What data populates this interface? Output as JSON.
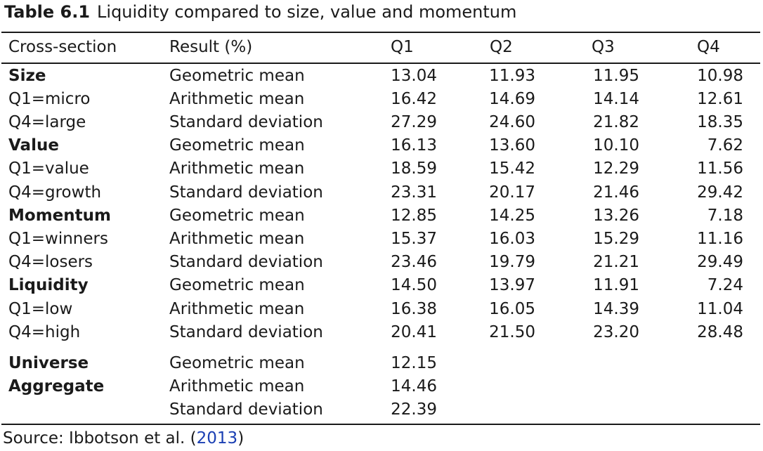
{
  "caption": {
    "label": "Table 6.1",
    "title": "Liquidity compared to size, value and momentum"
  },
  "header": {
    "cross_section": "Cross-section",
    "result": "Result (%)",
    "q1": "Q1",
    "q2": "Q2",
    "q3": "Q3",
    "q4": "Q4"
  },
  "rows": [
    {
      "section": "Size",
      "result": "Geometric mean",
      "q1": "13.04",
      "q2": "11.93",
      "q3": "11.95",
      "q4": "10.98"
    },
    {
      "section": "Q1=micro",
      "result": "Arithmetic mean",
      "q1": "16.42",
      "q2": "14.69",
      "q3": "14.14",
      "q4": "12.61"
    },
    {
      "section": "Q4=large",
      "result": "Standard deviation",
      "q1": "27.29",
      "q2": "24.60",
      "q3": "21.82",
      "q4": "18.35"
    },
    {
      "section": "Value",
      "result": "Geometric mean",
      "q1": "16.13",
      "q2": "13.60",
      "q3": "10.10",
      "q4": "7.62"
    },
    {
      "section": "Q1=value",
      "result": "Arithmetic mean",
      "q1": "18.59",
      "q2": "15.42",
      "q3": "12.29",
      "q4": "11.56"
    },
    {
      "section": "Q4=growth",
      "result": "Standard deviation",
      "q1": "23.31",
      "q2": "20.17",
      "q3": "21.46",
      "q4": "29.42"
    },
    {
      "section": "Momentum",
      "result": "Geometric mean",
      "q1": "12.85",
      "q2": "14.25",
      "q3": "13.26",
      "q4": "7.18"
    },
    {
      "section": "Q1=winners",
      "result": "Arithmetic mean",
      "q1": "15.37",
      "q2": "16.03",
      "q3": "15.29",
      "q4": "11.16"
    },
    {
      "section": "Q4=losers",
      "result": "Standard deviation",
      "q1": "23.46",
      "q2": "19.79",
      "q3": "21.21",
      "q4": "29.49"
    },
    {
      "section": "Liquidity",
      "result": "Geometric mean",
      "q1": "14.50",
      "q2": "13.97",
      "q3": "11.91",
      "q4": "7.24"
    },
    {
      "section": "Q1=low",
      "result": "Arithmetic mean",
      "q1": "16.38",
      "q2": "16.05",
      "q3": "14.39",
      "q4": "11.04"
    },
    {
      "section": "Q4=high",
      "result": "Standard deviation",
      "q1": "20.41",
      "q2": "21.50",
      "q3": "23.20",
      "q4": "28.48"
    },
    {
      "section": "Universe",
      "result": "Geometric mean",
      "q1": "12.15",
      "q2": "",
      "q3": "",
      "q4": ""
    },
    {
      "section": "Aggregate",
      "result": "Arithmetic mean",
      "q1": "14.46",
      "q2": "",
      "q3": "",
      "q4": ""
    },
    {
      "section": "",
      "result": "Standard deviation",
      "q1": "22.39",
      "q2": "",
      "q3": "",
      "q4": ""
    }
  ],
  "source": {
    "prefix": "Source: Ibbotson et al. (",
    "link": "2013",
    "suffix": ")"
  },
  "colors": {
    "text": "#1a1a1a",
    "link": "#1a3fb3"
  }
}
